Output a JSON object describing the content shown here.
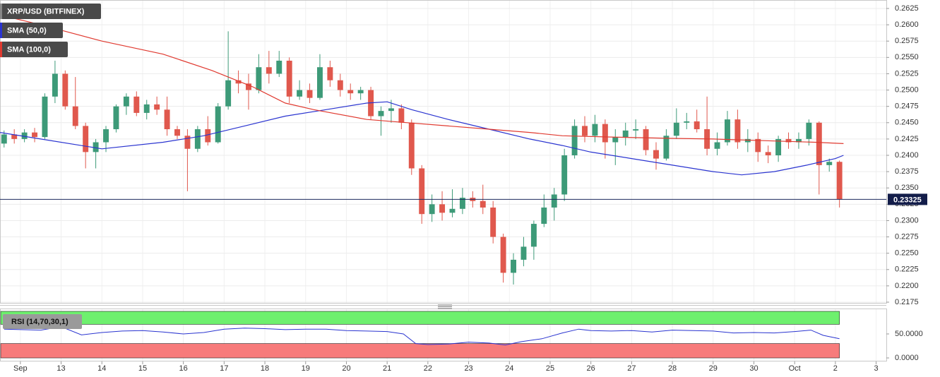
{
  "chart_data": [
    {
      "type": "candlestick",
      "xlim": [
        11.5,
        33.25
      ],
      "ylim": [
        0.2175,
        0.2625
      ],
      "yticks": [
        {
          "value": 0.2175,
          "label": "0.2175"
        },
        {
          "value": 0.22,
          "label": "0.2200"
        },
        {
          "value": 0.2225,
          "label": "0.2225"
        },
        {
          "value": 0.225,
          "label": "0.2250"
        },
        {
          "value": 0.2275,
          "label": "0.2275"
        },
        {
          "value": 0.23,
          "label": "0.2300"
        },
        {
          "value": 0.2325,
          "label": "0.2325"
        },
        {
          "value": 0.235,
          "label": "0.2350"
        },
        {
          "value": 0.2375,
          "label": "0.2375"
        },
        {
          "value": 0.24,
          "label": "0.2400"
        },
        {
          "value": 0.2425,
          "label": "0.2425"
        },
        {
          "value": 0.245,
          "label": "0.2450"
        },
        {
          "value": 0.2475,
          "label": "0.2475"
        },
        {
          "value": 0.25,
          "label": "0.2500"
        },
        {
          "value": 0.2525,
          "label": "0.2525"
        },
        {
          "value": 0.255,
          "label": "0.2550"
        },
        {
          "value": 0.2575,
          "label": "0.2575"
        },
        {
          "value": 0.26,
          "label": "0.2600"
        },
        {
          "value": 0.2625,
          "label": "0.2625"
        }
      ],
      "xticks": [
        {
          "value": 12,
          "label": "Sep"
        },
        13,
        14,
        15,
        16,
        17,
        18,
        19,
        20,
        21,
        22,
        23,
        24,
        25,
        26,
        27,
        28,
        29,
        30,
        {
          "value": 31,
          "label": "Oct"
        },
        {
          "value": 32,
          "label": "2"
        },
        {
          "value": 33,
          "label": "3"
        }
      ],
      "grid": true,
      "last_price": 0.23325,
      "series": [
        {
          "name": "XRP/USD (BITFINEX)",
          "up_color": "#3d9a78",
          "down_color": "#e0584d",
          "x": [
            11.6,
            11.85,
            12.1,
            12.35,
            12.6,
            12.85,
            13.1,
            13.35,
            13.6,
            13.85,
            14.1,
            14.35,
            14.6,
            14.85,
            15.1,
            15.35,
            15.6,
            15.85,
            16.1,
            16.35,
            16.6,
            16.85,
            17.1,
            17.35,
            17.6,
            17.85,
            18.1,
            18.35,
            18.6,
            18.85,
            19.1,
            19.35,
            19.6,
            19.85,
            20.1,
            20.35,
            20.6,
            20.85,
            21.1,
            21.35,
            21.6,
            21.85,
            22.1,
            22.35,
            22.6,
            22.85,
            23.1,
            23.35,
            23.6,
            23.85,
            24.1,
            24.35,
            24.6,
            24.85,
            25.1,
            25.35,
            25.6,
            25.85,
            26.1,
            26.35,
            26.6,
            26.85,
            27.1,
            27.35,
            27.6,
            27.85,
            28.1,
            28.35,
            28.6,
            28.85,
            29.1,
            29.35,
            29.6,
            29.85,
            30.1,
            30.35,
            30.6,
            30.85,
            31.1,
            31.35,
            31.6,
            31.85,
            32.1
          ],
          "open": [
            0.2418,
            0.2432,
            0.2425,
            0.2435,
            0.2428,
            0.249,
            0.2525,
            0.2475,
            0.2445,
            0.2405,
            0.242,
            0.244,
            0.2475,
            0.249,
            0.2465,
            0.2478,
            0.247,
            0.244,
            0.243,
            0.241,
            0.244,
            0.242,
            0.2475,
            0.2515,
            0.251,
            0.25,
            0.2535,
            0.2525,
            0.2545,
            0.249,
            0.25,
            0.2488,
            0.2535,
            0.2515,
            0.25,
            0.2495,
            0.25,
            0.246,
            0.2468,
            0.2472,
            0.245,
            0.238,
            0.231,
            0.2325,
            0.2312,
            0.2318,
            0.2335,
            0.233,
            0.232,
            0.2275,
            0.222,
            0.224,
            0.226,
            0.2295,
            0.232,
            0.234,
            0.24,
            0.2445,
            0.243,
            0.2448,
            0.242,
            0.2428,
            0.2438,
            0.244,
            0.2408,
            0.2395,
            0.243,
            0.245,
            0.2452,
            0.244,
            0.241,
            0.242,
            0.2455,
            0.242,
            0.2425,
            0.2405,
            0.24,
            0.2425,
            0.242,
            0.2425,
            0.245,
            0.2385,
            0.239
          ],
          "high": [
            0.2438,
            0.244,
            0.244,
            0.2442,
            0.2495,
            0.2545,
            0.253,
            0.252,
            0.245,
            0.2425,
            0.2445,
            0.2478,
            0.2495,
            0.2498,
            0.2485,
            0.249,
            0.249,
            0.2445,
            0.244,
            0.2445,
            0.246,
            0.248,
            0.259,
            0.253,
            0.2525,
            0.2555,
            0.256,
            0.256,
            0.255,
            0.2515,
            0.251,
            0.2555,
            0.2545,
            0.2525,
            0.251,
            0.2505,
            0.2505,
            0.2475,
            0.2485,
            0.2478,
            0.2455,
            0.2385,
            0.234,
            0.2345,
            0.2348,
            0.235,
            0.2345,
            0.2355,
            0.233,
            0.228,
            0.225,
            0.2275,
            0.23,
            0.234,
            0.235,
            0.241,
            0.2455,
            0.246,
            0.2462,
            0.2455,
            0.244,
            0.245,
            0.2455,
            0.2445,
            0.242,
            0.244,
            0.2472,
            0.2465,
            0.247,
            0.249,
            0.2435,
            0.2468,
            0.247,
            0.244,
            0.2435,
            0.2415,
            0.243,
            0.2435,
            0.2435,
            0.2455,
            0.2452,
            0.2395,
            0.2392
          ],
          "low": [
            0.2412,
            0.2418,
            0.242,
            0.242,
            0.2425,
            0.248,
            0.247,
            0.244,
            0.238,
            0.238,
            0.2405,
            0.2435,
            0.2462,
            0.246,
            0.2455,
            0.2462,
            0.243,
            0.2425,
            0.2345,
            0.2405,
            0.2415,
            0.2418,
            0.247,
            0.2495,
            0.247,
            0.2495,
            0.251,
            0.252,
            0.248,
            0.2485,
            0.248,
            0.2485,
            0.2505,
            0.249,
            0.2485,
            0.2485,
            0.2455,
            0.243,
            0.245,
            0.244,
            0.237,
            0.2295,
            0.2298,
            0.23,
            0.2305,
            0.231,
            0.232,
            0.231,
            0.2265,
            0.2205,
            0.2202,
            0.223,
            0.224,
            0.229,
            0.23,
            0.233,
            0.2395,
            0.242,
            0.242,
            0.2395,
            0.2385,
            0.2415,
            0.2425,
            0.24,
            0.2378,
            0.2392,
            0.2425,
            0.244,
            0.2435,
            0.24,
            0.24,
            0.2415,
            0.241,
            0.2405,
            0.239,
            0.2388,
            0.239,
            0.241,
            0.241,
            0.2415,
            0.234,
            0.2375,
            0.232
          ],
          "close": [
            0.2432,
            0.2425,
            0.2435,
            0.2428,
            0.249,
            0.2525,
            0.2475,
            0.2445,
            0.2405,
            0.242,
            0.244,
            0.2475,
            0.249,
            0.2465,
            0.2478,
            0.247,
            0.244,
            0.243,
            0.241,
            0.244,
            0.242,
            0.2475,
            0.2515,
            0.251,
            0.25,
            0.2535,
            0.2525,
            0.2545,
            0.249,
            0.25,
            0.2488,
            0.2535,
            0.2515,
            0.25,
            0.2495,
            0.25,
            0.246,
            0.2468,
            0.2472,
            0.245,
            0.238,
            0.231,
            0.2325,
            0.2312,
            0.2318,
            0.2335,
            0.233,
            0.232,
            0.2275,
            0.222,
            0.224,
            0.226,
            0.2295,
            0.232,
            0.234,
            0.24,
            0.2445,
            0.243,
            0.2448,
            0.242,
            0.2428,
            0.2438,
            0.244,
            0.2408,
            0.2395,
            0.243,
            0.245,
            0.2452,
            0.244,
            0.241,
            0.242,
            0.2455,
            0.242,
            0.2425,
            0.2405,
            0.24,
            0.2425,
            0.242,
            0.2425,
            0.245,
            0.2385,
            0.239,
            0.23325
          ]
        },
        {
          "name": "SMA (50,0)",
          "color": "#2a34d0",
          "x": [
            11.5,
            12.5,
            14.0,
            15.5,
            16.5,
            17.5,
            18.5,
            19.5,
            20.5,
            21.0,
            21.6,
            22.5,
            23.5,
            24.5,
            25.3,
            26.0,
            27.0,
            28.0,
            29.0,
            29.7,
            30.5,
            31.3,
            32.0,
            32.2
          ],
          "values": [
            0.2435,
            0.2425,
            0.241,
            0.242,
            0.243,
            0.2445,
            0.246,
            0.247,
            0.248,
            0.2482,
            0.247,
            0.2455,
            0.244,
            0.2425,
            0.2415,
            0.2405,
            0.2395,
            0.2385,
            0.2375,
            0.237,
            0.2375,
            0.2385,
            0.2395,
            0.24
          ]
        },
        {
          "name": "SMA (100,0)",
          "color": "#e03a30",
          "x": [
            11.5,
            12.5,
            14.0,
            15.5,
            16.7,
            17.7,
            18.5,
            19.2,
            20.5,
            21.5,
            22.5,
            23.5,
            24.5,
            25.3,
            26.5,
            28.0,
            29.0,
            30.5,
            31.5,
            32.2
          ],
          "values": [
            0.2615,
            0.26,
            0.2575,
            0.2555,
            0.253,
            0.2505,
            0.248,
            0.247,
            0.2455,
            0.245,
            0.2445,
            0.244,
            0.2435,
            0.243,
            0.2428,
            0.2426,
            0.2425,
            0.2422,
            0.242,
            0.2418
          ]
        }
      ]
    },
    {
      "type": "line",
      "xlim": [
        11.5,
        33.25
      ],
      "ylim": [
        0,
        100
      ],
      "yticks": [
        {
          "value": 0,
          "label": "0.0000"
        },
        {
          "value": 50,
          "label": "50.0000"
        }
      ],
      "upper_band": 70,
      "lower_band": 30,
      "series": [
        {
          "name": "RSI (14,70,30,1)",
          "color": "#2a34d0",
          "x": [
            11.6,
            12.5,
            13.0,
            13.5,
            14.0,
            14.5,
            15.0,
            15.5,
            16.0,
            16.5,
            17.0,
            17.5,
            18.0,
            18.5,
            19.0,
            19.5,
            20.0,
            20.5,
            21.0,
            21.4,
            21.7,
            22.0,
            22.5,
            23.0,
            23.5,
            23.9,
            24.3,
            24.8,
            25.3,
            25.7,
            26.0,
            26.5,
            27.0,
            27.5,
            28.0,
            28.5,
            29.0,
            29.5,
            30.0,
            30.5,
            31.0,
            31.4,
            31.7,
            32.1
          ],
          "values": [
            60,
            58,
            65,
            48,
            53,
            56,
            57,
            54,
            50,
            53,
            60,
            62,
            61,
            59,
            60,
            60,
            57,
            56,
            55,
            50,
            30,
            28,
            29,
            33,
            31,
            27,
            34,
            40,
            52,
            60,
            57,
            56,
            57,
            54,
            58,
            57,
            56,
            52,
            53,
            52,
            55,
            58,
            47,
            40
          ]
        }
      ]
    }
  ]
}
